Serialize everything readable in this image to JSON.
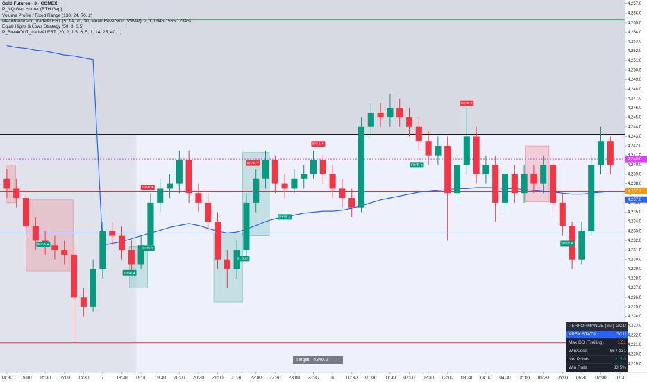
{
  "chart_data": {
    "type": "candlestick",
    "title": "Gold Futures · 3 · COMEX",
    "indicators": [
      "P_NQ Gap Hunter (RTH Gap)",
      "Volume Profile / Fixed Range (130, 24, 70, 2)",
      "MeanReversion_tradeALERT (5, 14, 70, 30, Mean Reversion (VWAP), 2, 1, 0945-1555:12345)",
      "Equal Highs & Lows Strategy (50, 3, 0.5)",
      "P_BreakOUT_tradeALERT (20, 2, 1.5, 6, 5, 1, 14, 25, 40, 1)"
    ],
    "open": [
      4238.5,
      4237.5,
      4236.5,
      4233.5,
      4232,
      4231.5,
      4231,
      4230.5,
      4226,
      4225,
      4229,
      4233,
      4232.5,
      4231,
      4229.5,
      4231.5,
      4236,
      4237.5,
      4238,
      4240.5,
      4237,
      4236,
      4234,
      4230,
      4229,
      4231,
      4236,
      4238.5,
      4240.5,
      4238,
      4237.5,
      4238.5,
      4239,
      4240.5,
      4239,
      4237.5,
      4236.5,
      4235.5,
      4244,
      4245.5,
      4245,
      4246,
      4245,
      4244,
      4242.5,
      4241,
      4242,
      4237,
      4240,
      4243,
      4239,
      4240,
      4236,
      4239,
      4237,
      4239,
      4238,
      4240,
      4236,
      4233.5,
      4230,
      4233,
      4240,
      4242.5
    ],
    "high": [
      4239.5,
      4238.5,
      4237.5,
      4234.5,
      4233,
      4232.5,
      4232,
      4231.5,
      4227,
      4230,
      4234,
      4234,
      4233.5,
      4232,
      4232.5,
      4237,
      4238.5,
      4239,
      4241.5,
      4241.5,
      4238,
      4237,
      4235,
      4231,
      4232,
      4237,
      4239.5,
      4241.5,
      4241,
      4239,
      4239.5,
      4240,
      4241.5,
      4241,
      4240,
      4238.5,
      4237.5,
      4245,
      4246.5,
      4246.5,
      4247.5,
      4247,
      4246,
      4245,
      4243.5,
      4243,
      4243,
      4241,
      4246,
      4244,
      4241,
      4241,
      4240,
      4240,
      4240,
      4240,
      4241,
      4241,
      4237,
      4234,
      4234,
      4241,
      4244,
      4243
    ],
    "low": [
      4236.5,
      4235.5,
      4232.5,
      4231,
      4230.5,
      4230,
      4229.5,
      4221.5,
      4224,
      4224.5,
      4228,
      4231.5,
      4230,
      4228.5,
      4229,
      4231,
      4235,
      4236.5,
      4237,
      4236,
      4235,
      4233,
      4229,
      4227,
      4228,
      4230,
      4235,
      4237.5,
      4237,
      4236.5,
      4237,
      4237.5,
      4238.5,
      4238,
      4236.5,
      4235.5,
      4234.5,
      4235,
      4243,
      4244,
      4244,
      4244,
      4243,
      4241.5,
      4240,
      4240,
      4232,
      4236,
      4239,
      4238,
      4238,
      4234,
      4235,
      4236,
      4236,
      4237,
      4237,
      4235,
      4232.5,
      4229,
      4229.5,
      4232.5,
      4239,
      4239
    ],
    "close": [
      4237.5,
      4236.5,
      4233.5,
      4232,
      4231.5,
      4231,
      4230.5,
      4226,
      4225,
      4229,
      4233,
      4232.5,
      4231,
      4229.5,
      4231.5,
      4236,
      4237.5,
      4238,
      4240.5,
      4237,
      4236,
      4234,
      4230,
      4229,
      4231,
      4236,
      4238.5,
      4240.5,
      4238,
      4237.5,
      4238.5,
      4239,
      4240.5,
      4239,
      4237.5,
      4236.5,
      4235.5,
      4244,
      4245.5,
      4245,
      4246,
      4245,
      4244,
      4242.5,
      4241,
      4242,
      4237,
      4240,
      4243,
      4239,
      4240,
      4236,
      4239,
      4237,
      4239,
      4238,
      4240,
      4236,
      4233.5,
      4230,
      4233,
      4240,
      4242.5,
      4240
    ],
    "up_color": "#089981",
    "down_color": "#f23645",
    "vwap": {
      "color": "#2962ff",
      "values": [
        4252.6,
        4252.4,
        4252.3,
        4252.1,
        4252.0,
        4251.8,
        4251.6,
        4251.5,
        4251.3,
        4251.1,
        4231.5,
        4231.7,
        4231.9,
        4232.2,
        4232.5,
        4232.8,
        4233.1,
        4233.4,
        4233.6,
        4233.8,
        4233.6,
        4233.3,
        4233.0,
        4232.8,
        4232.9,
        4233.2,
        4233.6,
        4234.0,
        4234.3,
        4234.5,
        4234.7,
        4234.9,
        4235.0,
        4235.1,
        4235.1,
        4235.2,
        4235.4,
        4235.7,
        4236.0,
        4236.3,
        4236.5,
        4236.7,
        4236.9,
        4237.1,
        4237.2,
        4237.3,
        4237.4,
        4237.5,
        4237.5,
        4237.6,
        4237.6,
        4237.6,
        4237.5,
        4237.5,
        4237.4,
        4237.3,
        4237.2,
        4237.1,
        4237.0,
        4236.9,
        4236.9,
        4237.0,
        4237.1,
        4237.2
      ]
    },
    "xlim": [
      -0.72,
      64.5
    ],
    "xticks": [
      {
        "value": 0,
        "label": "14:30"
      },
      {
        "value": 2,
        "label": "15:00"
      },
      {
        "value": 4,
        "label": "15:30"
      },
      {
        "value": 6,
        "label": "16:00"
      },
      {
        "value": 8,
        "label": "16:30"
      },
      {
        "value": 10,
        "label": "7"
      },
      {
        "value": 12,
        "label": "18:30"
      },
      {
        "value": 14,
        "label": "19:00"
      },
      {
        "value": 16,
        "label": "19:30"
      },
      {
        "value": 18,
        "label": "20:00"
      },
      {
        "value": 20,
        "label": "20:30"
      },
      {
        "value": 22,
        "label": "21:00"
      },
      {
        "value": 24,
        "label": "21:30"
      },
      {
        "value": 26,
        "label": "22:00"
      },
      {
        "value": 28,
        "label": "22:30"
      },
      {
        "value": 30,
        "label": "23:00"
      },
      {
        "value": 32,
        "label": "23:30"
      },
      {
        "value": 34,
        "label": "8"
      },
      {
        "value": 36,
        "label": "00:30"
      },
      {
        "value": 38,
        "label": "01:00"
      },
      {
        "value": 40,
        "label": "01:30"
      },
      {
        "value": 42,
        "label": "02:00"
      },
      {
        "value": 44,
        "label": "02:30"
      },
      {
        "value": 46,
        "label": "03:00"
      },
      {
        "value": 48,
        "label": "03:30"
      },
      {
        "value": 50,
        "label": "04:00"
      },
      {
        "value": 52,
        "label": "04:30"
      },
      {
        "value": 54,
        "label": "05:00"
      },
      {
        "value": 56,
        "label": "05:30"
      },
      {
        "value": 58,
        "label": "06:00"
      },
      {
        "value": 60,
        "label": "06:30"
      },
      {
        "value": 62,
        "label": "07:00"
      },
      {
        "value": 64,
        "label": "07:3"
      }
    ],
    "ylim": [
      4218.1,
      4257.4
    ],
    "yticks": [
      {
        "value": 4219,
        "label": "4,219.0"
      },
      {
        "value": 4220,
        "label": "4,220.0"
      },
      {
        "value": 4221,
        "label": "4,221.0"
      },
      {
        "value": 4222,
        "label": "4,222.0"
      },
      {
        "value": 4223,
        "label": "4,223.0"
      },
      {
        "value": 4224,
        "label": "4,224.0"
      },
      {
        "value": 4225,
        "label": "4,225.0"
      },
      {
        "value": 4226,
        "label": "4,226.0"
      },
      {
        "value": 4227,
        "label": "4,227.0"
      },
      {
        "value": 4228,
        "label": "4,228.0"
      },
      {
        "value": 4229,
        "label": "4,229.0"
      },
      {
        "value": 4230,
        "label": "4,230.0"
      },
      {
        "value": 4231,
        "label": "4,231.0"
      },
      {
        "value": 4232,
        "label": "4,232.0"
      },
      {
        "value": 4233,
        "label": "4,233.0"
      },
      {
        "value": 4234,
        "label": "4,234.0"
      },
      {
        "value": 4235,
        "label": "4,235.0"
      },
      {
        "value": 4236,
        "label": "4,236.0"
      },
      {
        "value": 4237,
        "label": "4,237.0"
      },
      {
        "value": 4238,
        "label": "4,238.0"
      },
      {
        "value": 4239,
        "label": "4,239.0"
      },
      {
        "value": 4240,
        "label": "4,240.0"
      },
      {
        "value": 4241,
        "label": "4,241.0"
      },
      {
        "value": 4242,
        "label": "4,242.0"
      },
      {
        "value": 4243,
        "label": "4,243.0"
      },
      {
        "value": 4244,
        "label": "4,244.0"
      },
      {
        "value": 4245,
        "label": "4,245.0"
      },
      {
        "value": 4246,
        "label": "4,246.0"
      },
      {
        "value": 4247,
        "label": "4,247.0"
      },
      {
        "value": 4248,
        "label": "4,248.0"
      },
      {
        "value": 4249,
        "label": "4,249.0"
      },
      {
        "value": 4250,
        "label": "4,250.0"
      },
      {
        "value": 4251,
        "label": "4,251.0"
      },
      {
        "value": 4252,
        "label": "4,252.0"
      },
      {
        "value": 4253,
        "label": "4,253.0"
      },
      {
        "value": 4254,
        "label": "4,254.0"
      },
      {
        "value": 4255,
        "label": "4,255.0"
      },
      {
        "value": 4256,
        "label": "4,256.0"
      },
      {
        "value": 4257,
        "label": "4,257.0"
      }
    ],
    "hlines": [
      {
        "value": 4255.3,
        "color": "#4caf50"
      },
      {
        "value": 4243.2,
        "color": "#000000"
      },
      {
        "value": 4240.6,
        "color": "#e040fb",
        "dash": true
      },
      {
        "value": 4237.2,
        "color": "#e53935"
      },
      {
        "value": 4232.8,
        "color": "#2962ff"
      },
      {
        "value": 4221.2,
        "color": "#e53935"
      }
    ],
    "price_badges": [
      {
        "value": 4240.6,
        "label": "4,240.6",
        "color": "#e040fb"
      },
      {
        "value": 4237.2,
        "label": "4,237.2",
        "color": "#ff9800"
      },
      {
        "value": 4237.0,
        "label": "4,237.0",
        "color": "#2962ff"
      }
    ],
    "zones": [
      {
        "x": [
          -0.1,
          0.9
        ],
        "y": [
          4236,
          4240
        ],
        "color": "#f23645"
      },
      {
        "x": [
          2.0,
          6.9
        ],
        "y": [
          4228.8,
          4236.3
        ],
        "color": "#f23645"
      },
      {
        "x": [
          12.8,
          14.7
        ],
        "y": [
          4227,
          4231.4
        ],
        "color": "#089981"
      },
      {
        "x": [
          21.6,
          24.6
        ],
        "y": [
          4225.5,
          4232.8
        ],
        "color": "#089981"
      },
      {
        "x": [
          24.6,
          27.4
        ],
        "y": [
          4232.5,
          4241.3
        ],
        "color": "#089981"
      },
      {
        "x": [
          54.1,
          56.6
        ],
        "y": [
          4236.1,
          4242
        ],
        "color": "#f23645"
      }
    ],
    "signals": [
      {
        "label": "SHAB ▼",
        "x": 14.7,
        "y": 4237.6,
        "color": "#f23645"
      },
      {
        "label": "SHAB ▼",
        "x": 25.7,
        "y": 4240.2,
        "color": "#f23645"
      },
      {
        "label": "SHAB ▼",
        "x": 32.5,
        "y": 4242.2,
        "color": "#f23645"
      },
      {
        "label": "SHAB ▼",
        "x": 48,
        "y": 4246.5,
        "color": "#f23645"
      },
      {
        "label": "SHAB ▲",
        "x": 3.8,
        "y": 4231.6,
        "color": "#089981"
      },
      {
        "label": "SHAB ▲",
        "x": 12.8,
        "y": 4228.6,
        "color": "#089981"
      },
      {
        "label": "SHAB ▲",
        "x": 29,
        "y": 4234.5,
        "color": "#089981"
      },
      {
        "label": "SHAB ▲",
        "x": 42.8,
        "y": 4240,
        "color": "#089981"
      },
      {
        "label": "SHAB ▲",
        "x": 58.5,
        "y": 4231.7,
        "color": "#089981"
      },
      {
        "label": "S1 BUY",
        "x": 24.6,
        "y": 4230.1,
        "color": "#089981"
      },
      {
        "label": "S1 BUY",
        "x": 14.7,
        "y": 4231.2,
        "color": "#089981"
      }
    ]
  },
  "stats": {
    "title": "PERFORMANCE (6M)",
    "symbol": "GC1!",
    "header": [
      "APEX STATS",
      "GC1!"
    ],
    "rows": [
      [
        "Max DD (Trailing)",
        "1.51"
      ],
      [
        "Win/Loss",
        "66 / 131"
      ],
      [
        "Net Points",
        "215.0"
      ],
      [
        "Win Rate",
        "33.5%"
      ]
    ]
  },
  "target": {
    "label": "Target",
    "value": "4240.2"
  }
}
